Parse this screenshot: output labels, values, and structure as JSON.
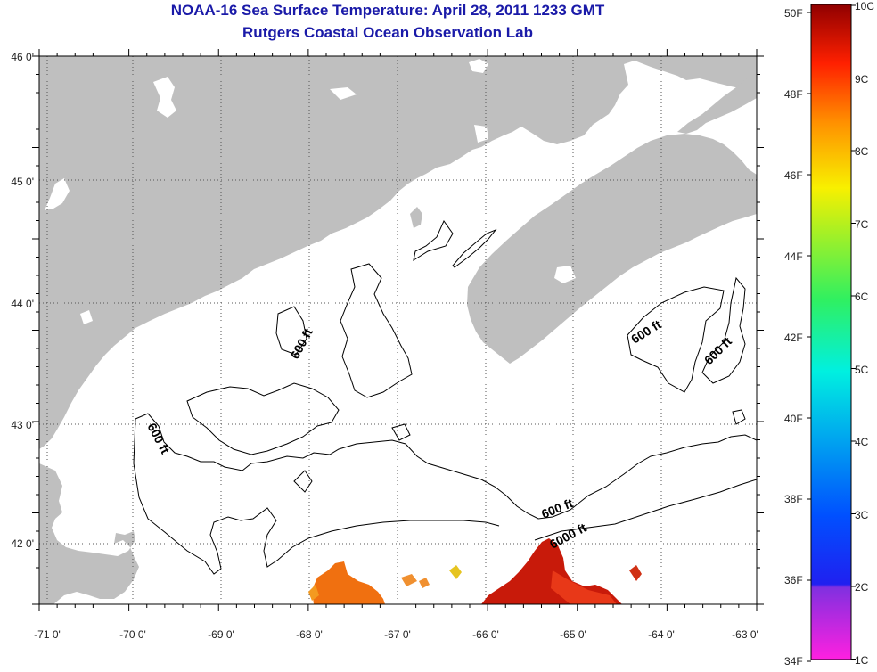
{
  "title": {
    "line1": "NOAA-16 Sea Surface Temperature:  April 28, 2011 1233 GMT",
    "line2": "Rutgers Coastal Ocean Observation Lab"
  },
  "map": {
    "lon_labels": [
      "-71 0'",
      "-70 0'",
      "-69 0'",
      "-68 0'",
      "-67 0'",
      "-66 0'",
      "-65 0'",
      "-64 0'",
      "-63 0'"
    ],
    "lat_labels": [
      "46 0'",
      "45 0'",
      "44 0'",
      "43 0'",
      "42 0'"
    ],
    "contour_labels": [
      "600 ft",
      "600 ft",
      "600 ft",
      "600 ft",
      "600 ft",
      "6000 ft"
    ],
    "colors": {
      "land": "#bfbfbf",
      "ocean": "#ffffff",
      "grid": "#555555",
      "sst_warm": "#c81a0a",
      "sst_mid": "#f07010"
    }
  },
  "colorbar": {
    "fahrenheit": [
      "50F",
      "48F",
      "46F",
      "44F",
      "42F",
      "40F",
      "38F",
      "36F",
      "34F"
    ],
    "celsius": [
      "10C",
      "9C",
      "8C",
      "7C",
      "6C",
      "5C",
      "4C",
      "3C",
      "2C",
      "1C"
    ]
  }
}
